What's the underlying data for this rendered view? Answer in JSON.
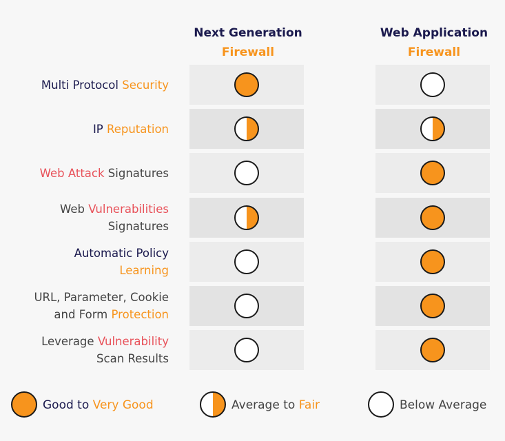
{
  "columns": [
    {
      "line1": "Next Generation",
      "line2": "Firewall"
    },
    {
      "line1": "Web Application",
      "line2": "Firewall"
    }
  ],
  "rows": [
    {
      "lines": [
        [
          {
            "t": "Multi Protocol ",
            "c": "#1b1a4e"
          },
          {
            "t": "Security",
            "c": "#f7941d"
          }
        ]
      ],
      "ngfw": "full",
      "waf": "empty"
    },
    {
      "lines": [
        [
          {
            "t": "IP ",
            "c": "#1b1a4e"
          },
          {
            "t": "Reputation",
            "c": "#f7941d"
          }
        ]
      ],
      "ngfw": "half",
      "waf": "half"
    },
    {
      "lines": [
        [
          {
            "t": "Web Attack",
            "c": "#e8525a"
          },
          {
            "t": " Signatures",
            "c": "#444444"
          }
        ]
      ],
      "ngfw": "empty",
      "waf": "full"
    },
    {
      "lines": [
        [
          {
            "t": "Web ",
            "c": "#444444"
          },
          {
            "t": "Vulnerabilities",
            "c": "#e8525a"
          }
        ],
        [
          {
            "t": "Signatures",
            "c": "#444444"
          }
        ]
      ],
      "ngfw": "half",
      "waf": "full"
    },
    {
      "lines": [
        [
          {
            "t": "Automatic Policy",
            "c": "#1b1a4e"
          }
        ],
        [
          {
            "t": "Learning",
            "c": "#f7941d"
          }
        ]
      ],
      "ngfw": "empty",
      "waf": "full"
    },
    {
      "lines": [
        [
          {
            "t": "URL, Parameter, Cookie",
            "c": "#444444"
          }
        ],
        [
          {
            "t": "and Form ",
            "c": "#444444"
          },
          {
            "t": "Protection",
            "c": "#f7941d"
          }
        ]
      ],
      "ngfw": "empty",
      "waf": "full"
    },
    {
      "lines": [
        [
          {
            "t": "Leverage ",
            "c": "#444444"
          },
          {
            "t": "Vulnerability",
            "c": "#e8525a"
          }
        ],
        [
          {
            "t": "Scan Results",
            "c": "#444444"
          }
        ]
      ],
      "ngfw": "empty",
      "waf": "full"
    }
  ],
  "legend": [
    {
      "kind": "full",
      "parts": [
        {
          "t": "Good to ",
          "c": "#1b1a4e"
        },
        {
          "t": "Very Good",
          "c": "#f7941d"
        }
      ]
    },
    {
      "kind": "half",
      "parts": [
        {
          "t": "Average to ",
          "c": "#444444"
        },
        {
          "t": "Fair",
          "c": "#f7941d"
        }
      ]
    },
    {
      "kind": "empty",
      "parts": [
        {
          "t": "Below Average",
          "c": "#444444"
        }
      ]
    }
  ],
  "colors": {
    "accent": "#f7941d",
    "navy": "#1b1a4e",
    "red": "#e8525a",
    "grey": "#444444"
  },
  "icons": {
    "full": "full-circle-icon",
    "half": "half-circle-icon",
    "empty": "empty-circle-icon"
  }
}
